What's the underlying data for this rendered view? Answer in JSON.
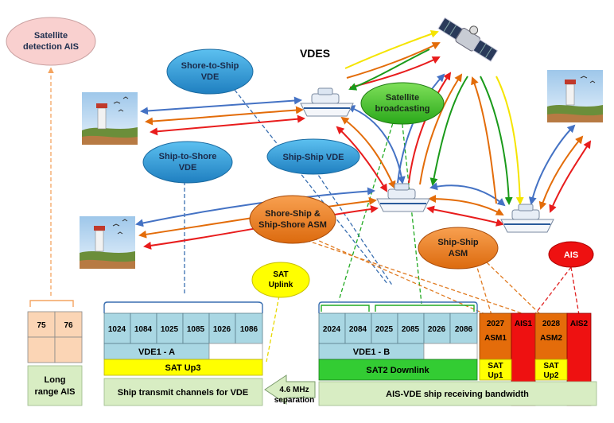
{
  "title": "VDES",
  "labels": {
    "satellite_detection": [
      "Satellite",
      "detection AIS"
    ],
    "shore_to_ship": [
      "Shore-to-Ship",
      "VDE"
    ],
    "ship_to_shore": [
      "Ship-to-Shore",
      "VDE"
    ],
    "ship_ship_vde": "Ship-Ship VDE",
    "satellite_broadcasting": [
      "Satellite",
      "broadcasting"
    ],
    "shore_ship_asm": [
      "Shore-Ship &",
      "Ship-Shore ASM"
    ],
    "ship_ship_asm": [
      "Ship-Ship",
      "ASM"
    ],
    "ais": "AIS",
    "sat_uplink": [
      "SAT",
      "Uplink"
    ]
  },
  "long_range": {
    "channels": [
      "75",
      "76"
    ],
    "label": [
      "Long",
      "range AIS"
    ]
  },
  "left_band": {
    "channels": [
      "1024",
      "1084",
      "1025",
      "1085",
      "1026",
      "1086"
    ],
    "vde": "VDE1 - A",
    "sat": "SAT Up3",
    "footer": "Ship transmit channels for VDE"
  },
  "separation": [
    "4.6 MHz",
    "separation"
  ],
  "right_band": {
    "channels": [
      "2024",
      "2084",
      "2025",
      "2085",
      "2026",
      "2086"
    ],
    "asm1": [
      "2027",
      "ASM1"
    ],
    "ais1": "AIS1",
    "asm2": [
      "2028",
      "ASM2"
    ],
    "ais2": "AIS2",
    "vde": "VDE1 - B",
    "sat": "SAT2 Downlink",
    "sat_up1": [
      "SAT",
      "Up1"
    ],
    "sat_up2": [
      "SAT",
      "Up2"
    ],
    "footer": "AIS-VDE ship receiving bandwidth"
  },
  "colors": {
    "blue_ellipse": "#2e9ad6",
    "green_ellipse": "#44cc33",
    "orange_ellipse": "#ee7a1a",
    "red_ellipse": "#ee1111",
    "yellow_ellipse": "#ffff00",
    "pink_ellipse": "#f9d0cf",
    "channel_cell": "#a9d7e3",
    "sat_yellow": "#ffff00",
    "sat_green": "#33cc33",
    "asm_orange": "#e46c0a",
    "ais_red": "#ee1111",
    "footer_green": "#d8edc3",
    "long_range_cell": "#fbd5b5",
    "arrow_blue": "#4472c4",
    "arrow_orange": "#e36c09",
    "arrow_red": "#e81c1c",
    "arrow_green": "#1a9a1a",
    "arrow_yellow": "#ffee00"
  },
  "icons": [
    "satellite-icon",
    "ship-icon",
    "lighthouse-icon"
  ]
}
